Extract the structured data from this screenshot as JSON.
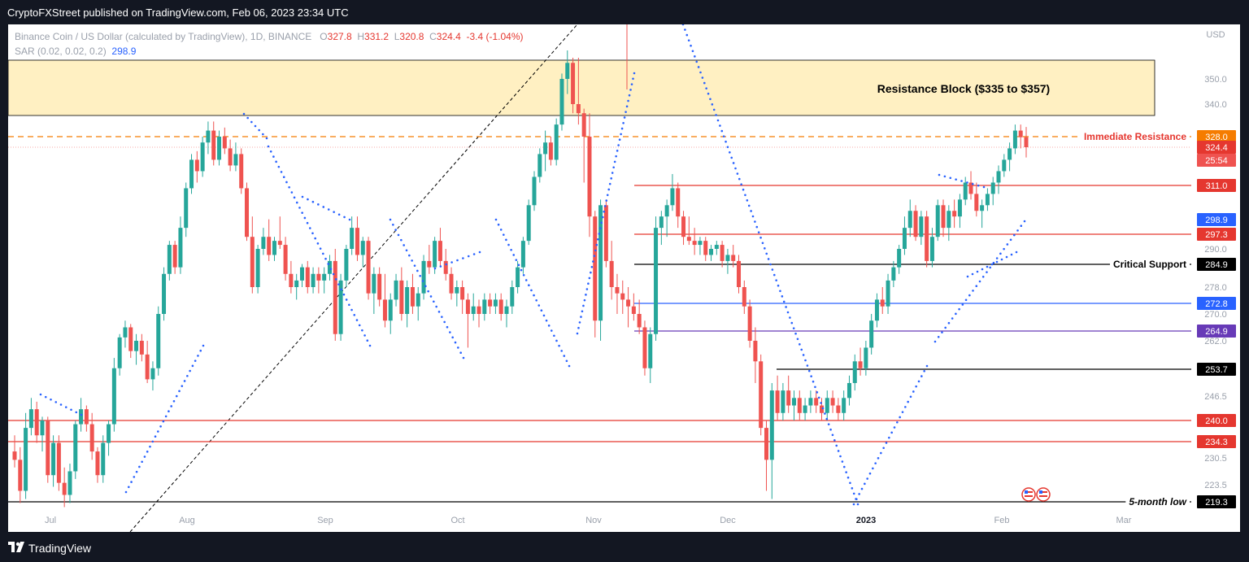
{
  "header": {
    "publisher": "CryptoFXStreet published on TradingView.com, Feb 06, 2023 23:34 UTC"
  },
  "legend": {
    "symbol": "Binance Coin / US Dollar (calculated by TradingView), 1D, BINANCE",
    "o_label": "O",
    "o": "327.8",
    "h_label": "H",
    "h": "331.2",
    "l_label": "L",
    "l": "320.8",
    "c_label": "C",
    "c": "324.4",
    "change": "-3.4 (-1.04%)",
    "sar_label": "SAR (0.02, 0.02, 0.2)",
    "sar_value": "298.9"
  },
  "footer": {
    "brand": "TradingView"
  },
  "colors": {
    "up": "#26a69a",
    "down": "#ef5350",
    "zone": "#fff0c2",
    "sar": "#2962ff",
    "background": "#131722"
  },
  "chart_data": {
    "type": "candlestick",
    "currency": "USD",
    "x_labels": [
      "Jul",
      "Aug",
      "Sep",
      "Oct",
      "Nov",
      "Dec",
      "2023",
      "Feb",
      "Mar"
    ],
    "y_axis": {
      "ticks": [
        350.0,
        340.0,
        290.0,
        278.0,
        270.0,
        262.0,
        246.5,
        230.5,
        223.5
      ],
      "tick_labels": [
        "350.0",
        "340.0",
        "290.0",
        "278.0",
        "270.0",
        "262.0",
        "246.5",
        "230.5",
        "223.5"
      ]
    },
    "zones": [
      {
        "label": "Resistance Block ($335 to $357)",
        "from": 335,
        "to": 357,
        "color": "#fff0c2"
      }
    ],
    "levels": [
      {
        "value": 328.0,
        "tag": "328.0",
        "tag_color": "#f57c00",
        "line_color": "#f57c00",
        "dashed": true,
        "label": "Immediate Resistance",
        "label_color": "#e5372f"
      },
      {
        "value": 311.0,
        "tag": "311.0",
        "tag_color": "#e5372f",
        "line_color": "#e5372f",
        "label": ""
      },
      {
        "value": 297.3,
        "tag": "297.3",
        "tag_color": "#e5372f",
        "line_color": "#e5372f",
        "label": ""
      },
      {
        "value": 284.9,
        "tag": "284.9",
        "tag_color": "#000000",
        "line_color": "#000000",
        "label": "Critical Support",
        "label_color": "#000000"
      },
      {
        "value": 272.8,
        "tag": "272.8",
        "tag_color": "#2962ff",
        "line_color": "#2962ff",
        "label": ""
      },
      {
        "value": 264.9,
        "tag": "264.9",
        "tag_color": "#673ab7",
        "line_color": "#673ab7",
        "label": ""
      },
      {
        "value": 253.7,
        "tag": "253.7",
        "tag_color": "#000000",
        "line_color": "#000000",
        "label": ""
      },
      {
        "value": 240.0,
        "tag": "240.0",
        "tag_color": "#e5372f",
        "line_color": "#e5372f",
        "label": ""
      },
      {
        "value": 234.3,
        "tag": "234.3",
        "tag_color": "#e5372f",
        "line_color": "#e5372f",
        "label": ""
      },
      {
        "value": 219.3,
        "tag": "219.3",
        "tag_color": "#000000",
        "line_color": "#000000",
        "label": "5-month low",
        "label_color": "#000000"
      }
    ],
    "price_tags": [
      {
        "value": 324.4,
        "tag": "324.4",
        "color": "#e5372f"
      },
      {
        "value": 298.9,
        "tag": "298.9",
        "color": "#2962ff"
      }
    ],
    "countdown": "25:54",
    "candles": [
      [
        232.0,
        236.0,
        228.0,
        230.0
      ],
      [
        230.0,
        233.0,
        219.0,
        222.0
      ],
      [
        222.0,
        242.0,
        220.0,
        238.0
      ],
      [
        238.0,
        246.0,
        236.0,
        243.0
      ],
      [
        243.0,
        245.0,
        234.0,
        236.0
      ],
      [
        236.0,
        241.0,
        232.0,
        240.0
      ],
      [
        240.0,
        241.0,
        224.0,
        226.0
      ],
      [
        226.0,
        236.0,
        223.0,
        234.0
      ],
      [
        234.0,
        236.0,
        222.0,
        224.0
      ],
      [
        224.0,
        228.0,
        218.0,
        221.0
      ],
      [
        221.0,
        229.0,
        219.0,
        227.0
      ],
      [
        227.0,
        240.0,
        225.0,
        239.0
      ],
      [
        239.0,
        246.0,
        237.0,
        243.0
      ],
      [
        243.0,
        244.0,
        237.0,
        239.0
      ],
      [
        239.0,
        242.0,
        230.0,
        232.0
      ],
      [
        232.0,
        233.0,
        224.0,
        226.0
      ],
      [
        226.0,
        236.0,
        224.0,
        234.0
      ],
      [
        234.0,
        240.0,
        231.0,
        239.0
      ],
      [
        239.0,
        257.0,
        237.0,
        254.0
      ],
      [
        254.0,
        264.0,
        252.0,
        263.0
      ],
      [
        263.0,
        268.0,
        260.0,
        266.0
      ],
      [
        266.0,
        267.0,
        257.0,
        259.0
      ],
      [
        259.0,
        264.0,
        255.0,
        262.0
      ],
      [
        262.0,
        264.0,
        256.0,
        258.0
      ],
      [
        258.0,
        262.0,
        250.0,
        251.0
      ],
      [
        251.0,
        256.0,
        248.0,
        254.0
      ],
      [
        254.0,
        272.0,
        252.0,
        270.0
      ],
      [
        270.0,
        284.0,
        268.0,
        282.0
      ],
      [
        282.0,
        294.0,
        280.0,
        292.0
      ],
      [
        292.0,
        294.0,
        282.0,
        284.0
      ],
      [
        284.0,
        300.0,
        282.0,
        298.0
      ],
      [
        298.0,
        312.0,
        296.0,
        310.0
      ],
      [
        310.0,
        322.0,
        308.0,
        320.0
      ],
      [
        320.0,
        323.0,
        312.0,
        316.0
      ],
      [
        316.0,
        328.0,
        314.0,
        326.0
      ],
      [
        326.0,
        333.0,
        322.0,
        330.0
      ],
      [
        330.0,
        333.0,
        318.0,
        320.0
      ],
      [
        320.0,
        330.0,
        318.0,
        328.0
      ],
      [
        328.0,
        331.0,
        322.0,
        324.0
      ],
      [
        324.0,
        327.0,
        316.0,
        318.0
      ],
      [
        318.0,
        326.0,
        316.0,
        322.0
      ],
      [
        322.0,
        324.0,
        308.0,
        310.0
      ],
      [
        310.0,
        312.0,
        294.0,
        296.0
      ],
      [
        296.0,
        300.0,
        276.0,
        278.0
      ],
      [
        278.0,
        292.0,
        276.0,
        290.0
      ],
      [
        290.0,
        298.0,
        288.0,
        296.0
      ],
      [
        296.0,
        299.0,
        286.0,
        288.0
      ],
      [
        288.0,
        296.0,
        286.0,
        294.0
      ],
      [
        294.0,
        300.0,
        290.0,
        292.0
      ],
      [
        292.0,
        296.0,
        280.0,
        282.0
      ],
      [
        282.0,
        286.0,
        276.0,
        278.0
      ],
      [
        278.0,
        282.0,
        274.0,
        280.0
      ],
      [
        280.0,
        285.0,
        278.0,
        284.0
      ],
      [
        284.0,
        286.0,
        276.0,
        278.0
      ],
      [
        278.0,
        284.0,
        276.0,
        282.0
      ],
      [
        282.0,
        284.0,
        276.0,
        280.0
      ],
      [
        280.0,
        284.0,
        276.0,
        282.0
      ],
      [
        282.0,
        288.0,
        280.0,
        286.0
      ],
      [
        286.0,
        290.0,
        262.0,
        264.0
      ],
      [
        264.0,
        282.0,
        262.0,
        280.0
      ],
      [
        280.0,
        292.0,
        278.0,
        290.0
      ],
      [
        290.0,
        300.0,
        288.0,
        298.0
      ],
      [
        298.0,
        300.0,
        286.0,
        288.0
      ],
      [
        288.0,
        296.0,
        284.0,
        294.0
      ],
      [
        294.0,
        296.0,
        274.0,
        276.0
      ],
      [
        276.0,
        284.0,
        270.0,
        282.0
      ],
      [
        282.0,
        284.0,
        272.0,
        274.0
      ],
      [
        274.0,
        282.0,
        266.0,
        268.0
      ],
      [
        268.0,
        276.0,
        264.0,
        274.0
      ],
      [
        274.0,
        282.0,
        272.0,
        280.0
      ],
      [
        280.0,
        284.0,
        268.0,
        270.0
      ],
      [
        270.0,
        280.0,
        266.0,
        278.0
      ],
      [
        278.0,
        282.0,
        270.0,
        272.0
      ],
      [
        272.0,
        278.0,
        268.0,
        276.0
      ],
      [
        276.0,
        288.0,
        274.0,
        286.0
      ],
      [
        286.0,
        292.0,
        282.0,
        284.0
      ],
      [
        284.0,
        296.0,
        282.0,
        294.0
      ],
      [
        294.0,
        298.0,
        284.0,
        286.0
      ],
      [
        286.0,
        290.0,
        280.0,
        282.0
      ],
      [
        282.0,
        284.0,
        274.0,
        276.0
      ],
      [
        276.0,
        280.0,
        272.0,
        278.0
      ],
      [
        278.0,
        280.0,
        270.0,
        274.0
      ],
      [
        274.0,
        276.0,
        260.0,
        270.0
      ],
      [
        270.0,
        276.0,
        268.0,
        272.0
      ],
      [
        272.0,
        274.0,
        266.0,
        270.0
      ],
      [
        270.0,
        276.0,
        268.0,
        274.0
      ],
      [
        274.0,
        276.0,
        270.0,
        272.0
      ],
      [
        272.0,
        276.0,
        270.0,
        274.0
      ],
      [
        274.0,
        276.0,
        268.0,
        270.0
      ],
      [
        270.0,
        274.0,
        266.0,
        272.0
      ],
      [
        272.0,
        280.0,
        270.0,
        278.0
      ],
      [
        278.0,
        286.0,
        276.0,
        284.0
      ],
      [
        284.0,
        296.0,
        282.0,
        294.0
      ],
      [
        294.0,
        306.0,
        292.0,
        304.0
      ],
      [
        304.0,
        316.0,
        302.0,
        314.0
      ],
      [
        314.0,
        324.0,
        312.0,
        322.0
      ],
      [
        322.0,
        330.0,
        316.0,
        326.0
      ],
      [
        326.0,
        328.0,
        318.0,
        320.0
      ],
      [
        320.0,
        334.0,
        318.0,
        332.0
      ],
      [
        332.0,
        352.0,
        330.0,
        350.0
      ],
      [
        350.0,
        361.0,
        344.0,
        356.0
      ],
      [
        356.0,
        358.0,
        336.0,
        340.0
      ],
      [
        340.0,
        358.0,
        332.0,
        336.0
      ],
      [
        336.0,
        338.0,
        312.0,
        328.0
      ],
      [
        328.0,
        336.0,
        296.0,
        300.0
      ],
      [
        300.0,
        302.0,
        263.0,
        268.0
      ],
      [
        268.0,
        306.0,
        262.0,
        304.0
      ],
      [
        304.0,
        306.0,
        284.0,
        286.0
      ],
      [
        286.0,
        294.0,
        274.0,
        278.0
      ],
      [
        278.0,
        282.0,
        270.0,
        276.0
      ],
      [
        276.0,
        280.0,
        270.0,
        274.0
      ],
      [
        274.0,
        278.0,
        266.0,
        272.0
      ],
      [
        272.0,
        276.0,
        268.0,
        270.0
      ],
      [
        270.0,
        274.0,
        264.0,
        266.0
      ],
      [
        266.0,
        268.0,
        252.0,
        254.0
      ],
      [
        254.0,
        266.0,
        250.0,
        264.0
      ],
      [
        264.0,
        300.0,
        262.0,
        298.0
      ],
      [
        298.0,
        302.0,
        292.0,
        300.0
      ],
      [
        300.0,
        306.0,
        296.0,
        304.0
      ],
      [
        304.0,
        315.0,
        302.0,
        310.0
      ],
      [
        310.0,
        312.0,
        298.0,
        300.0
      ],
      [
        300.0,
        302.0,
        292.0,
        296.0
      ],
      [
        296.0,
        300.0,
        292.0,
        294.0
      ],
      [
        294.0,
        298.0,
        288.0,
        292.0
      ],
      [
        292.0,
        296.0,
        288.0,
        294.0
      ],
      [
        294.0,
        296.0,
        286.0,
        288.0
      ],
      [
        288.0,
        292.0,
        286.0,
        290.0
      ],
      [
        290.0,
        294.0,
        288.0,
        292.0
      ],
      [
        292.0,
        294.0,
        284.0,
        286.0
      ],
      [
        286.0,
        290.0,
        282.0,
        288.0
      ],
      [
        288.0,
        292.0,
        284.0,
        286.0
      ],
      [
        286.0,
        288.0,
        276.0,
        278.0
      ],
      [
        278.0,
        280.0,
        270.0,
        272.0
      ],
      [
        272.0,
        274.0,
        260.0,
        262.0
      ],
      [
        262.0,
        266.0,
        250.0,
        256.0
      ],
      [
        256.0,
        258.0,
        236.0,
        238.0
      ],
      [
        238.0,
        240.0,
        222.0,
        230.0
      ],
      [
        230.0,
        250.0,
        220.0,
        248.0
      ],
      [
        248.0,
        252.0,
        240.0,
        242.0
      ],
      [
        242.0,
        250.0,
        240.0,
        248.0
      ],
      [
        248.0,
        252.0,
        242.0,
        244.0
      ],
      [
        244.0,
        248.0,
        240.0,
        246.0
      ],
      [
        246.0,
        248.0,
        240.0,
        242.0
      ],
      [
        242.0,
        246.0,
        240.0,
        244.0
      ],
      [
        244.0,
        248.0,
        242.0,
        246.0
      ],
      [
        246.0,
        248.0,
        242.0,
        244.0
      ],
      [
        244.0,
        246.0,
        240.0,
        242.0
      ],
      [
        242.0,
        248.0,
        240.0,
        246.0
      ],
      [
        246.0,
        248.0,
        242.0,
        244.0
      ],
      [
        244.0,
        246.0,
        240.0,
        242.0
      ],
      [
        242.0,
        248.0,
        240.0,
        246.0
      ],
      [
        246.0,
        252.0,
        244.0,
        250.0
      ],
      [
        250.0,
        258.0,
        248.0,
        256.0
      ],
      [
        256.0,
        260.0,
        252.0,
        254.0
      ],
      [
        254.0,
        262.0,
        252.0,
        260.0
      ],
      [
        260.0,
        270.0,
        258.0,
        268.0
      ],
      [
        268.0,
        276.0,
        266.0,
        274.0
      ],
      [
        274.0,
        278.0,
        270.0,
        272.0
      ],
      [
        272.0,
        282.0,
        270.0,
        280.0
      ],
      [
        280.0,
        286.0,
        278.0,
        284.0
      ],
      [
        284.0,
        292.0,
        282.0,
        290.0
      ],
      [
        290.0,
        300.0,
        288.0,
        298.0
      ],
      [
        298.0,
        306.0,
        296.0,
        302.0
      ],
      [
        302.0,
        304.0,
        294.0,
        296.0
      ],
      [
        296.0,
        302.0,
        292.0,
        300.0
      ],
      [
        300.0,
        302.0,
        284.0,
        286.0
      ],
      [
        286.0,
        298.0,
        284.0,
        296.0
      ],
      [
        296.0,
        306.0,
        294.0,
        304.0
      ],
      [
        304.0,
        306.0,
        296.0,
        298.0
      ],
      [
        298.0,
        304.0,
        294.0,
        302.0
      ],
      [
        302.0,
        306.0,
        298.0,
        300.0
      ],
      [
        300.0,
        308.0,
        298.0,
        306.0
      ],
      [
        306.0,
        314.0,
        304.0,
        312.0
      ],
      [
        312.0,
        316.0,
        306.0,
        308.0
      ],
      [
        308.0,
        312.0,
        300.0,
        302.0
      ],
      [
        302.0,
        306.0,
        298.0,
        304.0
      ],
      [
        304.0,
        310.0,
        302.0,
        308.0
      ],
      [
        308.0,
        314.0,
        304.0,
        312.0
      ],
      [
        312.0,
        318.0,
        308.0,
        316.0
      ],
      [
        316.0,
        322.0,
        314.0,
        320.0
      ],
      [
        320.0,
        326.0,
        316.0,
        324.0
      ],
      [
        324.0,
        332.0,
        322.0,
        330.0
      ],
      [
        330.0,
        332.0,
        324.0,
        327.8
      ],
      [
        327.8,
        331.2,
        320.8,
        324.4
      ]
    ]
  }
}
